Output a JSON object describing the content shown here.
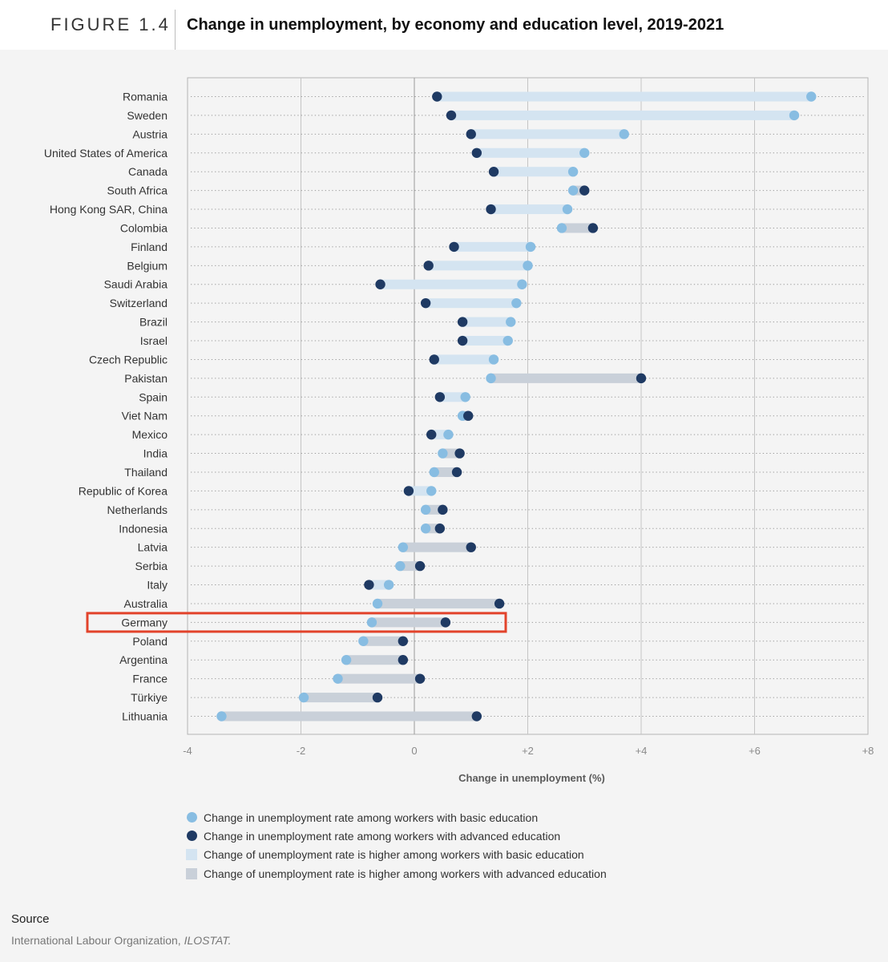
{
  "header": {
    "figure_label": "FIGURE 1.4",
    "title": "Change in unemployment, by economy and education level, 2019-2021"
  },
  "colors": {
    "basic_dot": "#88bde2",
    "advanced_dot": "#1f3a63",
    "bar_basic_higher": "#d4e4f1",
    "bar_advanced_higher": "#c9d0d9",
    "highlight": "#e2432b"
  },
  "chart_data": {
    "type": "dumbbell",
    "xlabel": "Change in unemployment (%)",
    "xlim": [
      -4,
      8
    ],
    "x_ticks": [
      -4,
      -2,
      0,
      2,
      4,
      6,
      8
    ],
    "x_tick_labels": [
      "-4",
      "-2",
      "0",
      "+2",
      "+4",
      "+6",
      "+8"
    ],
    "grid": true,
    "highlighted_category": "Germany",
    "series": [
      {
        "name": "Change in unemployment rate among workers with basic education"
      },
      {
        "name": "Change in unemployment rate among workers with advanced education"
      }
    ],
    "rows": [
      {
        "label": "Romania",
        "basic": 7.0,
        "advanced": 0.4
      },
      {
        "label": "Sweden",
        "basic": 6.7,
        "advanced": 0.65
      },
      {
        "label": "Austria",
        "basic": 3.7,
        "advanced": 1.0
      },
      {
        "label": "United States of America",
        "basic": 3.0,
        "advanced": 1.1
      },
      {
        "label": "Canada",
        "basic": 2.8,
        "advanced": 1.4
      },
      {
        "label": "South Africa",
        "basic": 2.8,
        "advanced": 3.0
      },
      {
        "label": "Hong Kong SAR, China",
        "basic": 2.7,
        "advanced": 1.35
      },
      {
        "label": "Colombia",
        "basic": 2.6,
        "advanced": 3.15
      },
      {
        "label": "Finland",
        "basic": 2.05,
        "advanced": 0.7
      },
      {
        "label": "Belgium",
        "basic": 2.0,
        "advanced": 0.25
      },
      {
        "label": "Saudi Arabia",
        "basic": 1.9,
        "advanced": -0.6
      },
      {
        "label": "Switzerland",
        "basic": 1.8,
        "advanced": 0.2
      },
      {
        "label": "Brazil",
        "basic": 1.7,
        "advanced": 0.85
      },
      {
        "label": "Israel",
        "basic": 1.65,
        "advanced": 0.85
      },
      {
        "label": "Czech Republic",
        "basic": 1.4,
        "advanced": 0.35
      },
      {
        "label": "Pakistan",
        "basic": 1.35,
        "advanced": 4.0
      },
      {
        "label": "Spain",
        "basic": 0.9,
        "advanced": 0.45
      },
      {
        "label": "Viet Nam",
        "basic": 0.85,
        "advanced": 0.95
      },
      {
        "label": "Mexico",
        "basic": 0.6,
        "advanced": 0.3
      },
      {
        "label": "India",
        "basic": 0.5,
        "advanced": 0.8
      },
      {
        "label": "Thailand",
        "basic": 0.35,
        "advanced": 0.75
      },
      {
        "label": "Republic of Korea",
        "basic": 0.3,
        "advanced": -0.1
      },
      {
        "label": "Netherlands",
        "basic": 0.2,
        "advanced": 0.5
      },
      {
        "label": "Indonesia",
        "basic": 0.2,
        "advanced": 0.45
      },
      {
        "label": "Latvia",
        "basic": -0.2,
        "advanced": 1.0
      },
      {
        "label": "Serbia",
        "basic": -0.25,
        "advanced": 0.1
      },
      {
        "label": "Italy",
        "basic": -0.45,
        "advanced": -0.8
      },
      {
        "label": "Australia",
        "basic": -0.65,
        "advanced": 1.5
      },
      {
        "label": "Germany",
        "basic": -0.75,
        "advanced": 0.55
      },
      {
        "label": "Poland",
        "basic": -0.9,
        "advanced": -0.2
      },
      {
        "label": "Argentina",
        "basic": -1.2,
        "advanced": -0.2
      },
      {
        "label": "France",
        "basic": -1.35,
        "advanced": 0.1
      },
      {
        "label": "Türkiye",
        "basic": -1.95,
        "advanced": -0.65
      },
      {
        "label": "Lithuania",
        "basic": -3.4,
        "advanced": 1.1
      }
    ]
  },
  "legend": {
    "items": [
      {
        "label": "Change in unemployment rate among workers with basic education"
      },
      {
        "label": "Change in unemployment rate among workers with advanced education"
      },
      {
        "label": "Change of unemployment rate is higher among workers with basic education"
      },
      {
        "label": "Change of unemployment rate is higher among workers with advanced education"
      }
    ]
  },
  "source": {
    "heading": "Source",
    "text_prefix": "International Labour Organization, ",
    "text_emphasis": "ILOSTAT."
  }
}
